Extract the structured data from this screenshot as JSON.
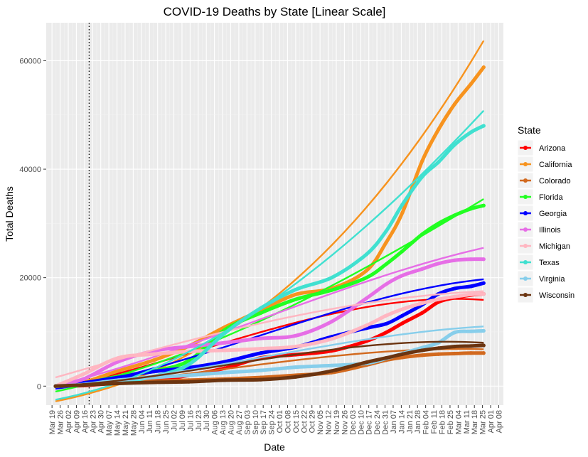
{
  "chart_data": {
    "type": "line",
    "title": "COVID-19 Deaths by State [Linear Scale]",
    "xlabel": "Date",
    "ylabel": "Total Deaths",
    "ylim": [
      -3500,
      67000
    ],
    "yticks": [
      0,
      20000,
      40000,
      60000
    ],
    "xlim": [
      "2020-03-14",
      "2021-04-12"
    ],
    "x_tick_labels": [
      "Mar 19",
      "Mar 26",
      "Apr 02",
      "Apr 09",
      "Apr 16",
      "Apr 23",
      "Apr 30",
      "May 07",
      "May 14",
      "May 21",
      "May 28",
      "Jun 04",
      "Jun 11",
      "Jun 18",
      "Jun 25",
      "Jul 02",
      "Jul 09",
      "Jul 16",
      "Jul 23",
      "Jul 30",
      "Aug 06",
      "Aug 13",
      "Aug 20",
      "Aug 27",
      "Sep 03",
      "Sep 10",
      "Sep 17",
      "Sep 24",
      "Oct 01",
      "Oct 08",
      "Oct 15",
      "Oct 22",
      "Oct 29",
      "Nov 05",
      "Nov 12",
      "Nov 19",
      "Nov 26",
      "Dec 03",
      "Dec 10",
      "Dec 17",
      "Dec 24",
      "Dec 31",
      "Jan 07",
      "Jan 14",
      "Jan 21",
      "Jan 28",
      "Feb 04",
      "Feb 11",
      "Feb 18",
      "Feb 25",
      "Mar 04",
      "Mar 11",
      "Mar 18",
      "Mar 25",
      "Apr 01",
      "Apr 08"
    ],
    "x_tick_dates": [
      "2020-03-19",
      "2020-03-26",
      "2020-04-02",
      "2020-04-09",
      "2020-04-16",
      "2020-04-23",
      "2020-04-30",
      "2020-05-07",
      "2020-05-14",
      "2020-05-21",
      "2020-05-28",
      "2020-06-04",
      "2020-06-11",
      "2020-06-18",
      "2020-06-25",
      "2020-07-02",
      "2020-07-09",
      "2020-07-16",
      "2020-07-23",
      "2020-07-30",
      "2020-08-06",
      "2020-08-13",
      "2020-08-20",
      "2020-08-27",
      "2020-09-03",
      "2020-09-10",
      "2020-09-17",
      "2020-09-24",
      "2020-10-01",
      "2020-10-08",
      "2020-10-15",
      "2020-10-22",
      "2020-10-29",
      "2020-11-05",
      "2020-11-12",
      "2020-11-19",
      "2020-11-26",
      "2020-12-03",
      "2020-12-10",
      "2020-12-17",
      "2020-12-24",
      "2020-12-31",
      "2021-01-07",
      "2021-01-14",
      "2021-01-21",
      "2021-01-28",
      "2021-02-04",
      "2021-02-11",
      "2021-02-18",
      "2021-02-25",
      "2021-03-04",
      "2021-03-11",
      "2021-03-18",
      "2021-03-25",
      "2021-04-01",
      "2021-04-08"
    ],
    "vline_date": "2020-04-20",
    "grid": true,
    "legend_title": "State",
    "legend_position": "right",
    "x_dates": [
      "2020-03-22",
      "2020-04-15",
      "2020-05-15",
      "2020-06-15",
      "2020-07-15",
      "2020-08-15",
      "2020-09-15",
      "2020-10-15",
      "2020-11-15",
      "2020-12-15",
      "2021-01-01",
      "2021-01-15",
      "2021-02-01",
      "2021-02-15",
      "2021-03-01",
      "2021-03-15",
      "2021-03-26"
    ],
    "series": [
      {
        "name": "Arizona",
        "color": "#ff0000",
        "values": [
          0,
          100,
          600,
          1000,
          2000,
          3300,
          5200,
          5800,
          6500,
          8300,
          9900,
          11600,
          13500,
          15500,
          16300,
          16800,
          17000
        ],
        "fit": [
          -400,
          15900,
          4800,
          17800
        ]
      },
      {
        "name": "California",
        "color": "#f7931e",
        "values": [
          0,
          700,
          2800,
          4800,
          7400,
          10900,
          14000,
          16900,
          18000,
          21300,
          26500,
          32000,
          41500,
          47300,
          52000,
          55700,
          58800
        ],
        "fit": [
          -2800,
          63700,
          2400,
          19000
        ]
      },
      {
        "name": "Colorado",
        "color": "#d2691e",
        "values": [
          0,
          300,
          700,
          900,
          1100,
          1300,
          1600,
          2000,
          2500,
          3900,
          4800,
          5300,
          5700,
          5900,
          6000,
          6100,
          6100
        ],
        "fit": [
          -200,
          6800,
          1500,
          7500
        ]
      },
      {
        "name": "Florida",
        "color": "#21ff21",
        "values": [
          0,
          500,
          1800,
          2800,
          4700,
          10400,
          13500,
          16000,
          17700,
          20000,
          22500,
          24900,
          28000,
          30000,
          31500,
          32700,
          33300
        ],
        "fit": [
          -1000,
          34500,
          4500,
          18500
        ]
      },
      {
        "name": "Georgia",
        "color": "#0000ff",
        "values": [
          0,
          600,
          1600,
          2700,
          3400,
          4500,
          6100,
          7200,
          9100,
          10700,
          11500,
          13000,
          15000,
          17000,
          18000,
          18400,
          19000
        ],
        "fit": [
          -500,
          19700,
          3000,
          17000
        ]
      },
      {
        "name": "Illinois",
        "color": "#e66ee6",
        "values": [
          0,
          1300,
          4500,
          6500,
          7300,
          8000,
          8800,
          9300,
          11900,
          16200,
          18800,
          20400,
          21600,
          22600,
          23200,
          23400,
          23400
        ],
        "fit": [
          100,
          25500,
          6500,
          19500
        ]
      },
      {
        "name": "Michigan",
        "color": "#ffb6c1",
        "values": [
          0,
          2200,
          5200,
          5900,
          6400,
          6600,
          6900,
          7300,
          8700,
          11200,
          13000,
          14200,
          15300,
          16000,
          16500,
          16900,
          17000
        ],
        "fit": [
          1600,
          17500,
          9200,
          16300
        ]
      },
      {
        "name": "Texas",
        "color": "#40e0d0",
        "values": [
          0,
          200,
          700,
          1800,
          4000,
          9800,
          14400,
          17800,
          20000,
          24300,
          28600,
          33500,
          38600,
          41300,
          44500,
          46800,
          48000
        ],
        "fit": [
          -2500,
          50800,
          2500,
          22500
        ]
      },
      {
        "name": "Virginia",
        "color": "#87ceeb",
        "values": [
          0,
          300,
          1100,
          1600,
          2000,
          2500,
          2900,
          3500,
          3800,
          4200,
          5100,
          6000,
          7100,
          8000,
          9900,
          10100,
          10200
        ],
        "fit": [
          0,
          11000,
          1700,
          9500
        ]
      },
      {
        "name": "Wisconsin",
        "color": "#6b3410",
        "values": [
          0,
          200,
          500,
          700,
          800,
          1100,
          1200,
          1700,
          2800,
          4400,
          5200,
          5900,
          6600,
          7000,
          7300,
          7400,
          7500
        ],
        "fit": [
          0,
          8000,
          1500,
          9500
        ]
      }
    ]
  }
}
